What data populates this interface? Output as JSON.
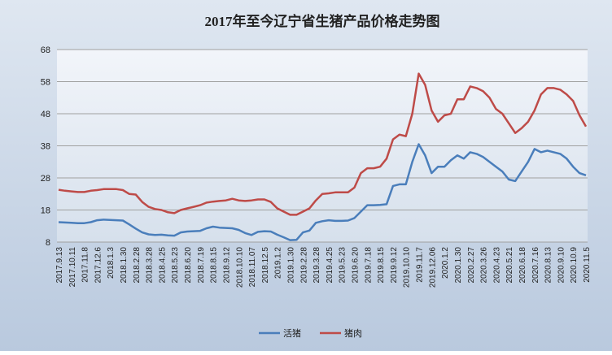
{
  "chart_data": {
    "type": "line",
    "title": "2017年至今辽宁省生猪产品价格走势图",
    "categories": [
      "2017.9.13",
      null,
      "2017.10.11",
      null,
      "2017.11.8",
      null,
      "2017.12.6",
      null,
      "2018.1.3",
      null,
      "2018.1.30",
      null,
      "2018.2.28",
      null,
      "2018.3.28",
      null,
      "2018.4.25",
      null,
      "2018.5.23",
      null,
      "2018.6.20",
      null,
      "2018.7.19",
      null,
      "2018.8.15",
      null,
      "2018.9.12",
      null,
      "2018.10.10",
      null,
      "2018.11.07",
      null,
      "2018.12.5",
      null,
      "2019.1.2",
      null,
      "2019.1.30",
      null,
      "2019.2.28",
      null,
      "2019.3.28",
      null,
      "2019.4.25",
      null,
      "2019.5.23",
      null,
      "2019.6.20",
      null,
      "2019.7.18",
      null,
      "2019.8.15",
      null,
      "2019.9.12",
      null,
      "2019.10.10",
      null,
      "2019.11.7",
      null,
      "2019.12.06",
      null,
      "2020.1.2",
      null,
      "2020.1.30",
      null,
      "2020.2.27",
      null,
      "2020.3.26",
      null,
      "2020.4.23",
      null,
      "2020.5.21",
      null,
      "2020.6.18",
      null,
      "2020.7.16",
      null,
      "2020.8.13",
      null,
      "2020.9.10",
      null,
      "2020.10.9",
      null,
      "2020.11.5"
    ],
    "series": [
      {
        "name": "活猪",
        "color": "#4a7ebb",
        "values": [
          14.2,
          14.1,
          14.0,
          13.9,
          13.9,
          14.2,
          14.8,
          15.0,
          14.9,
          14.8,
          14.7,
          13.5,
          12.2,
          11.0,
          10.4,
          10.2,
          10.3,
          10.1,
          10.0,
          11.0,
          11.3,
          11.4,
          11.5,
          12.3,
          12.8,
          12.5,
          12.4,
          12.3,
          11.8,
          10.8,
          10.2,
          11.2,
          11.4,
          11.3,
          10.3,
          9.5,
          8.6,
          8.7,
          11.0,
          11.6,
          14.0,
          14.5,
          14.8,
          14.6,
          14.6,
          14.7,
          15.5,
          17.5,
          19.5,
          19.5,
          19.6,
          19.8,
          25.5,
          26.0,
          26.0,
          33,
          38.5,
          35,
          29.5,
          31.5,
          31.5,
          33.5,
          35.0,
          34,
          36.0,
          35.5,
          34.5,
          33,
          31.5,
          30,
          27.5,
          27,
          30,
          33,
          37,
          36,
          36.5,
          36,
          35.5,
          34,
          31.5,
          29.5,
          28.8
        ]
      },
      {
        "name": "猪肉",
        "color": "#be4b48",
        "values": [
          24.3,
          24.0,
          23.8,
          23.6,
          23.6,
          24.0,
          24.2,
          24.5,
          24.5,
          24.5,
          24.2,
          23.0,
          22.8,
          20.5,
          19.0,
          18.3,
          18.0,
          17.3,
          17.0,
          18.0,
          18.5,
          19.0,
          19.5,
          20.3,
          20.6,
          20.8,
          21.0,
          21.5,
          21.0,
          20.8,
          21.0,
          21.3,
          21.3,
          20.5,
          18.5,
          17.5,
          16.5,
          16.5,
          17.5,
          18.5,
          21.0,
          23.0,
          23.2,
          23.5,
          23.5,
          23.5,
          25.0,
          29.5,
          31.0,
          31.0,
          31.5,
          34,
          40,
          41.5,
          41.0,
          48,
          60.5,
          57,
          49,
          45.5,
          47.5,
          48,
          52.5,
          52.5,
          56.5,
          56,
          55,
          53,
          49.5,
          48,
          45,
          42,
          43.5,
          45.5,
          49,
          54,
          56,
          56,
          55.5,
          54,
          52,
          47.5,
          44
        ]
      }
    ],
    "ylim": [
      8,
      68
    ],
    "yticks": [
      8,
      18,
      28,
      38,
      48,
      58,
      68
    ],
    "grid": true
  }
}
